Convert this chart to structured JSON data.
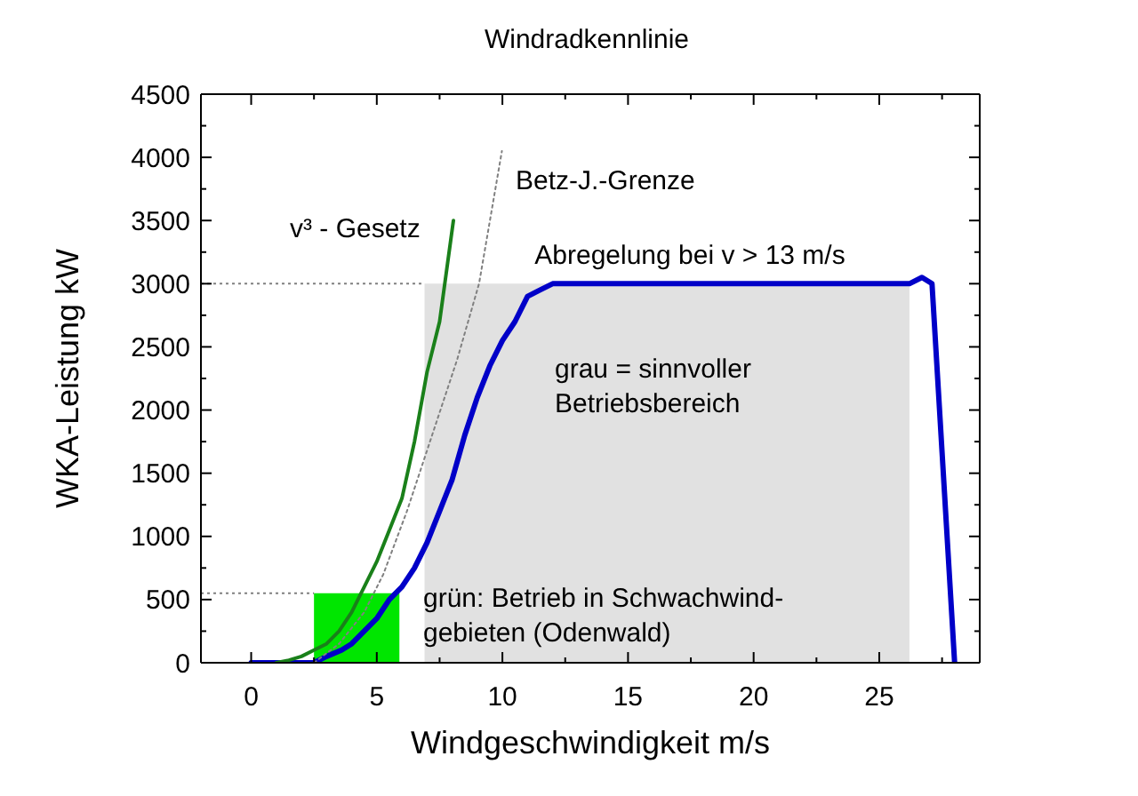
{
  "chart_data": {
    "type": "line",
    "title": "Windradkennlinie",
    "xlabel": "Windgeschwindigkeit m/s",
    "ylabel": "WKA-Leistung kW",
    "xlim": [
      -2,
      29
    ],
    "xticks": [
      0,
      {
        "value": 2.5,
        "label": null
      },
      5,
      {
        "value": 7.5,
        "label": null
      },
      10,
      {
        "value": 12.5,
        "label": null
      },
      15,
      {
        "value": 17.5,
        "label": null
      },
      20,
      {
        "value": 22.5,
        "label": null
      },
      25,
      {
        "value": 27.5,
        "label": null
      }
    ],
    "ylim": [
      0,
      4500
    ],
    "yticks": [
      0,
      {
        "value": 250,
        "label": null
      },
      500,
      {
        "value": 750,
        "label": null
      },
      1000,
      {
        "value": 1250,
        "label": null
      },
      1500,
      {
        "value": 1750,
        "label": null
      },
      2000,
      {
        "value": 2250,
        "label": null
      },
      2500,
      {
        "value": 2750,
        "label": null
      },
      3000,
      {
        "value": 3250,
        "label": null
      },
      3500,
      {
        "value": 3750,
        "label": null
      },
      4000,
      {
        "value": 4250,
        "label": null
      },
      4500
    ],
    "series": [
      {
        "type": "area",
        "color": "#e1e1e1",
        "x": [
          6.9,
          26.2
        ],
        "values": [
          3000,
          3000
        ]
      },
      {
        "type": "area",
        "color": "#00e600",
        "x": [
          2.5,
          5.9
        ],
        "values": [
          550,
          550
        ]
      },
      {
        "color": "#0000c8",
        "x": [
          0,
          2,
          2.5,
          3,
          3.6,
          4,
          4.5,
          5,
          5.5,
          6,
          6.5,
          7,
          7.5,
          8,
          8.5,
          9,
          9.5,
          10,
          10.5,
          11,
          11.5,
          12,
          12.5,
          26.2,
          26.7,
          27.1,
          28
        ],
        "values": [
          0,
          0,
          0,
          50,
          100,
          150,
          250,
          350,
          500,
          600,
          750,
          950,
          1200,
          1450,
          1800,
          2100,
          2350,
          2550,
          2700,
          2900,
          2950,
          3000,
          3000,
          3000,
          3050,
          3000,
          0
        ]
      },
      {
        "name": "v³ - Gesetz",
        "color": "#1a801a",
        "x": [
          1,
          1.5,
          2,
          2.5,
          3,
          3.5,
          4,
          4.5,
          5,
          5.5,
          6,
          6.5,
          7,
          7.5,
          8.05
        ],
        "values": [
          0,
          20,
          50,
          100,
          150,
          250,
          400,
          600,
          800,
          1050,
          1300,
          1750,
          2300,
          2700,
          3500
        ]
      },
      {
        "name": "Betz-J.-Grenze",
        "color": "#808080",
        "line_style": "dotted",
        "x": [
          2.5,
          3.5,
          4.5,
          5.26,
          6.2,
          7.2,
          8.2,
          9.07,
          9.98
        ],
        "values": [
          0,
          150,
          400,
          700,
          1200,
          1800,
          2400,
          3000,
          4050
        ]
      }
    ],
    "ref_lines": [
      {
        "axis": "y",
        "value": 3000,
        "color": "#808080",
        "line_style": "dotted"
      },
      {
        "axis": "y",
        "value": 550,
        "color": "#808080",
        "line_style": "dotted"
      }
    ],
    "annotations": [
      "Abregelung bei v > 13 m/s",
      "grau = sinnvoller\nBetriebsbereich",
      "grün: Betrieb in Schwachwind-\ngebieten (Odenwald)"
    ]
  }
}
